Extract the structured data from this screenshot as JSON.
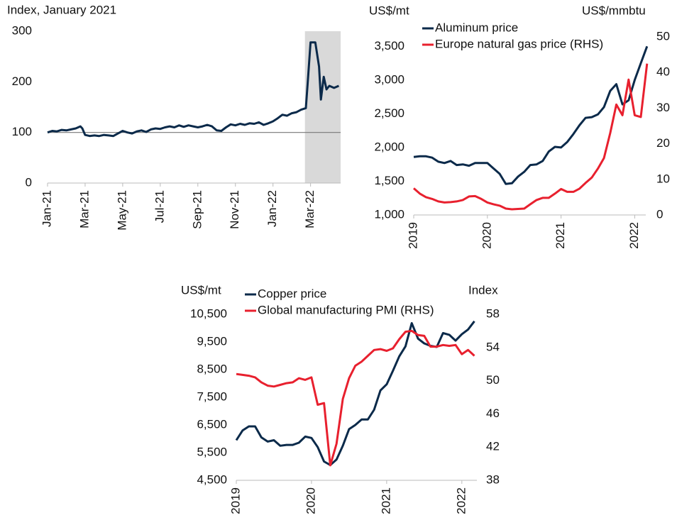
{
  "chart_data": [
    {
      "type": "line",
      "y_label": "Index, January 2021",
      "x": [
        0,
        0.25,
        0.5,
        0.75,
        1,
        1.25,
        1.5,
        1.75,
        1.85,
        2,
        2.25,
        2.5,
        2.75,
        3,
        3.25,
        3.5,
        3.75,
        4,
        4.25,
        4.5,
        4.75,
        5,
        5.25,
        5.5,
        5.75,
        6,
        6.25,
        6.5,
        6.75,
        7,
        7.25,
        7.5,
        7.75,
        8,
        8.25,
        8.5,
        8.75,
        9,
        9.25,
        9.5,
        9.75,
        10,
        10.25,
        10.5,
        10.75,
        11,
        11.25,
        11.5,
        11.75,
        12,
        12.25,
        12.5,
        12.75,
        13,
        13.25,
        13.5,
        13.75,
        13.85,
        14,
        14.25,
        14.45,
        14.55,
        14.7,
        14.85,
        15,
        15.25,
        15.5
      ],
      "series": [
        {
          "color": "#0b2a4a",
          "values": [
            100,
            103,
            102,
            105,
            104,
            106,
            108,
            112,
            108,
            95,
            93,
            94,
            93,
            95,
            94,
            93,
            98,
            103,
            100,
            98,
            102,
            104,
            101,
            106,
            108,
            107,
            110,
            112,
            110,
            114,
            111,
            114,
            112,
            110,
            112,
            115,
            112,
            104,
            103,
            110,
            116,
            114,
            117,
            115,
            118,
            117,
            120,
            115,
            118,
            122,
            128,
            135,
            133,
            138,
            140,
            145,
            148,
            200,
            278,
            278,
            230,
            165,
            210,
            185,
            192,
            188,
            192
          ]
        }
      ],
      "xlim": [
        0,
        15.6
      ],
      "xticks": [
        {
          "value": 0,
          "label": "Jan-21"
        },
        {
          "value": 2,
          "label": "Mar-21"
        },
        {
          "value": 4,
          "label": "May-21"
        },
        {
          "value": 6,
          "label": "Jul-21"
        },
        {
          "value": 8,
          "label": "Sep-21"
        },
        {
          "value": 10,
          "label": "Nov-21"
        },
        {
          "value": 12,
          "label": "Jan-22"
        },
        {
          "value": 14,
          "label": "Mar-22"
        }
      ],
      "ylim": [
        0,
        300
      ],
      "yticks": [
        0,
        100,
        200,
        300
      ],
      "reference_line": 100,
      "shaded_x": [
        13.7,
        15.6
      ],
      "shade_color": "#d9d9d9"
    },
    {
      "type": "line",
      "y_label": "US$/mt",
      "y2_label": "US$/mmbtu",
      "x": [
        2019,
        2019.083,
        2019.167,
        2019.25,
        2019.333,
        2019.417,
        2019.5,
        2019.583,
        2019.667,
        2019.75,
        2019.833,
        2019.917,
        2020,
        2020.083,
        2020.167,
        2020.25,
        2020.333,
        2020.417,
        2020.5,
        2020.583,
        2020.667,
        2020.75,
        2020.833,
        2020.917,
        2021,
        2021.083,
        2021.167,
        2021.25,
        2021.333,
        2021.417,
        2021.5,
        2021.583,
        2021.667,
        2021.75,
        2021.833,
        2021.917,
        2022,
        2022.083,
        2022.167
      ],
      "series": [
        {
          "name": "Aluminum price",
          "color": "#0b2a4a",
          "values": [
            1860,
            1870,
            1870,
            1850,
            1790,
            1770,
            1800,
            1740,
            1750,
            1730,
            1770,
            1770,
            1770,
            1690,
            1610,
            1460,
            1470,
            1570,
            1640,
            1740,
            1750,
            1800,
            1940,
            2010,
            2000,
            2080,
            2200,
            2330,
            2440,
            2450,
            2490,
            2600,
            2840,
            2940,
            2640,
            2700,
            3000,
            3250,
            3500
          ]
        },
        {
          "name": "Europe natural gas price (RHS)",
          "color": "#e8202e",
          "axis": "y2",
          "values": [
            7.5,
            6.0,
            5.0,
            4.5,
            3.8,
            3.5,
            3.6,
            3.8,
            4.2,
            5.2,
            5.3,
            4.5,
            3.5,
            3.0,
            2.6,
            1.8,
            1.6,
            1.7,
            1.8,
            3.0,
            4.2,
            4.8,
            4.8,
            6.0,
            7.3,
            6.5,
            6.5,
            7.4,
            9.0,
            10.5,
            13.0,
            16.0,
            23.0,
            31.0,
            28.0,
            38.0,
            28.0,
            27.5,
            42.5
          ]
        }
      ],
      "xlim": [
        2019,
        2022.15
      ],
      "xticks": [
        2019,
        2020,
        2021,
        2022
      ],
      "ylim": [
        1000,
        3640
      ],
      "yticks": [
        {
          "value": 1000,
          "label": "1,000"
        },
        {
          "value": 1500,
          "label": "1,500"
        },
        {
          "value": 2000,
          "label": "2,000"
        },
        {
          "value": 2500,
          "label": "2,500"
        },
        {
          "value": 3000,
          "label": "3,000"
        },
        {
          "value": 3500,
          "label": "3,500"
        }
      ],
      "y2lim": [
        0,
        50
      ],
      "y2ticks": [
        0,
        10,
        20,
        30,
        40,
        50
      ]
    },
    {
      "type": "line",
      "y_label": "US$/mt",
      "y2_label": "Index",
      "x": [
        2019,
        2019.083,
        2019.167,
        2019.25,
        2019.333,
        2019.417,
        2019.5,
        2019.583,
        2019.667,
        2019.75,
        2019.833,
        2019.917,
        2020,
        2020.083,
        2020.167,
        2020.25,
        2020.333,
        2020.417,
        2020.5,
        2020.583,
        2020.667,
        2020.75,
        2020.833,
        2020.917,
        2021,
        2021.083,
        2021.167,
        2021.25,
        2021.333,
        2021.417,
        2021.5,
        2021.583,
        2021.667,
        2021.75,
        2021.833,
        2021.917,
        2022,
        2022.083,
        2022.167
      ],
      "series": [
        {
          "name": "Copper price",
          "color": "#0b2a4a",
          "values": [
            5950,
            6300,
            6450,
            6450,
            6050,
            5900,
            5950,
            5750,
            5780,
            5780,
            5860,
            6080,
            6030,
            5700,
            5180,
            5050,
            5250,
            5750,
            6350,
            6500,
            6700,
            6700,
            7050,
            7750,
            7970,
            8460,
            8980,
            9340,
            10180,
            9620,
            9450,
            9360,
            9320,
            9820,
            9760,
            9550,
            9780,
            9950,
            10250
          ]
        },
        {
          "name": "Global manufacturing PMI (RHS)",
          "color": "#e8202e",
          "axis": "y2",
          "values": [
            50.8,
            50.7,
            50.6,
            50.4,
            49.8,
            49.4,
            49.3,
            49.5,
            49.7,
            49.8,
            50.3,
            50.1,
            50.4,
            47.1,
            47.3,
            39.8,
            42.4,
            47.8,
            50.3,
            51.8,
            52.3,
            53.0,
            53.7,
            53.8,
            53.6,
            53.9,
            55.0,
            55.9,
            56.0,
            55.5,
            55.4,
            54.1,
            54.1,
            54.3,
            54.2,
            54.3,
            53.2,
            53.7,
            53.0
          ]
        }
      ],
      "xlim": [
        2019,
        2022.2
      ],
      "xticks": [
        2019,
        2020,
        2021,
        2022
      ],
      "ylim": [
        4500,
        10500
      ],
      "yticks": [
        {
          "value": 4500,
          "label": "4,500"
        },
        {
          "value": 5500,
          "label": "5,500"
        },
        {
          "value": 6500,
          "label": "6,500"
        },
        {
          "value": 7500,
          "label": "7,500"
        },
        {
          "value": 8500,
          "label": "8,500"
        },
        {
          "value": 9500,
          "label": "9,500"
        },
        {
          "value": 10500,
          "label": "10,500"
        }
      ],
      "y2lim": [
        38,
        58
      ],
      "y2ticks": [
        38,
        42,
        46,
        50,
        54,
        58
      ]
    }
  ]
}
